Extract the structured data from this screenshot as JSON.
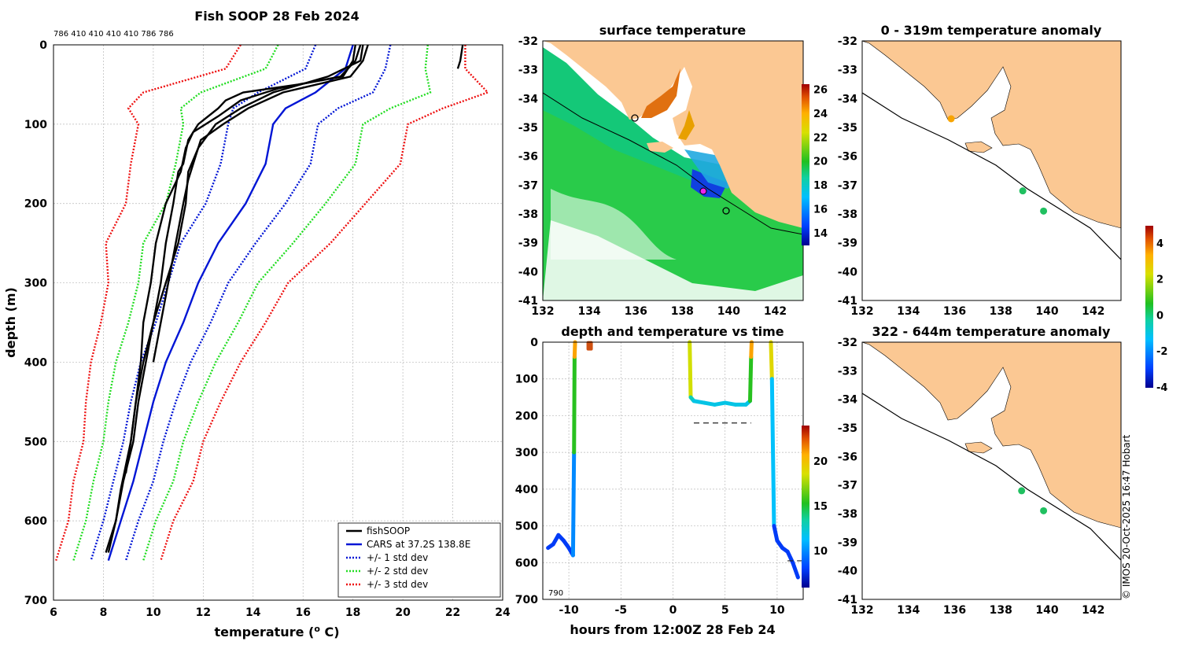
{
  "chart_data": [
    {
      "id": "profile",
      "type": "line",
      "title": "Fish SOOP 28 Feb 2024",
      "xlabel": "temperature (",
      "xlabel_sup": "o",
      "xlabel_tail": " C)",
      "ylabel": "depth (m)",
      "xlim": [
        6,
        24
      ],
      "ylim": [
        0,
        700
      ],
      "xticks": [
        "6",
        "8",
        "10",
        "12",
        "14",
        "16",
        "18",
        "20",
        "22",
        "24"
      ],
      "yticks": [
        "0",
        "100",
        "200",
        "300",
        "400",
        "500",
        "600",
        "700"
      ],
      "header_text": "786 410 410 410 410 786 786",
      "legend": [
        "fishSOOP",
        "CARS at 37.2S 138.8E",
        "+/- 1 std dev",
        "+/- 2 std dev",
        "+/- 3 std dev"
      ],
      "depths": [
        0,
        30,
        60,
        80,
        100,
        150,
        200,
        250,
        300,
        350,
        400,
        450,
        500,
        550,
        600,
        650
      ],
      "cars_mean": [
        18.0,
        17.7,
        16.5,
        15.3,
        14.8,
        14.5,
        13.7,
        12.6,
        11.8,
        11.2,
        10.5,
        10.0,
        9.6,
        9.2,
        8.7,
        8.2
      ],
      "std1_offsets": [
        1.5,
        1.6,
        2.3,
        2.1,
        1.8,
        1.8,
        1.6,
        1.5,
        1.2,
        1.1,
        1.0,
        0.9,
        0.8,
        0.8,
        0.7,
        0.7
      ],
      "series": [
        {
          "name": "fishSOOP cast 1",
          "depths": [
            0,
            20,
            40,
            50,
            60,
            70,
            80,
            100,
            120,
            150,
            160,
            200,
            250,
            300,
            350,
            400,
            450,
            500,
            550,
            600,
            640
          ],
          "values": [
            18.1,
            18.0,
            17.6,
            15.8,
            13.6,
            12.9,
            12.6,
            11.8,
            11.4,
            11.2,
            11.0,
            10.8,
            10.5,
            10.3,
            10.0,
            9.7,
            9.4,
            9.2,
            8.8,
            8.5,
            8.1
          ]
        },
        {
          "name": "fishSOOP cast 2",
          "depths": [
            0,
            20,
            40,
            55,
            70,
            90,
            110,
            130,
            160,
            200,
            250,
            300,
            350,
            400,
            450,
            500,
            540
          ],
          "values": [
            18.3,
            18.1,
            17.5,
            15.0,
            13.5,
            12.6,
            11.6,
            11.3,
            11.1,
            10.5,
            10.1,
            9.9,
            9.6,
            9.5,
            9.3,
            9.1,
            8.9
          ]
        },
        {
          "name": "fishSOOP cast 3",
          "depths": [
            0,
            20,
            40,
            60,
            80,
            100,
            120,
            140,
            170,
            200,
            250,
            300,
            350,
            400
          ],
          "values": [
            18.6,
            18.4,
            17.9,
            15.2,
            13.8,
            12.8,
            11.9,
            11.7,
            11.4,
            11.2,
            10.9,
            10.6,
            10.3,
            10.0
          ]
        },
        {
          "name": "fishSOOP cast 4",
          "depths": [
            0,
            20,
            40,
            60,
            80,
            100,
            130,
            160,
            200,
            250,
            300,
            350,
            400,
            450,
            500,
            560,
            600,
            640
          ],
          "values": [
            18.4,
            18.3,
            17.0,
            14.8,
            13.5,
            12.5,
            11.8,
            11.4,
            11.3,
            11.0,
            10.5,
            10.0,
            9.6,
            9.3,
            9.1,
            8.7,
            8.5,
            8.2
          ]
        },
        {
          "name": "fishSOOP cast 5",
          "depths": [
            0,
            20,
            30
          ],
          "values": [
            22.4,
            22.3,
            22.2
          ]
        }
      ]
    },
    {
      "id": "sst",
      "type": "heatmap",
      "title": "surface temperature",
      "xlim": [
        132,
        143.2
      ],
      "ylim": [
        -41,
        -32
      ],
      "xticks": [
        "132",
        "134",
        "136",
        "138",
        "140",
        "142"
      ],
      "yticks": [
        "-32",
        "-33",
        "-34",
        "-35",
        "-36",
        "-37",
        "-38",
        "-39",
        "-40",
        "-41"
      ],
      "colorbar": {
        "range": [
          13,
          26.5
        ],
        "ticks": [
          "14",
          "16",
          "18",
          "20",
          "22",
          "24",
          "26"
        ]
      }
    },
    {
      "id": "depth_time",
      "type": "line",
      "title": "depth and temperature vs time",
      "xlabel": "hours from 12:00Z 28 Feb 24",
      "xlim": [
        -12.5,
        12.5
      ],
      "ylim": [
        0,
        700
      ],
      "xticks": [
        "-10",
        "-5",
        "0",
        "5",
        "10"
      ],
      "yticks": [
        "0",
        "100",
        "200",
        "300",
        "400",
        "500",
        "600",
        "700"
      ],
      "annotation": "790",
      "colorbar": {
        "range": [
          6,
          24
        ],
        "ticks": [
          "10",
          "15",
          "20"
        ]
      },
      "segments": [
        {
          "hours": [
            -12.0,
            -11.5,
            -11.0,
            -10.5,
            -10.0,
            -9.6,
            -9.5,
            -9.45,
            -9.4
          ],
          "depths": [
            560,
            550,
            525,
            540,
            560,
            580,
            300,
            40,
            0
          ],
          "temps": [
            8,
            8,
            8,
            8,
            8,
            8,
            12,
            19,
            23
          ]
        },
        {
          "hours": [
            1.6,
            1.7,
            2.0,
            3.0,
            4.0,
            5.0,
            6.0,
            7.0,
            7.4,
            7.5,
            7.55
          ],
          "depths": [
            0,
            150,
            160,
            165,
            170,
            165,
            170,
            170,
            160,
            40,
            0
          ],
          "temps": [
            23,
            14,
            12,
            12,
            12,
            12,
            12,
            12,
            12,
            19,
            23
          ]
        },
        {
          "hours": [
            9.4,
            9.5,
            9.7,
            10.0,
            10.5,
            11.0,
            11.5,
            12.0
          ],
          "depths": [
            0,
            100,
            500,
            540,
            560,
            570,
            600,
            640
          ],
          "temps": [
            23,
            15,
            8,
            8,
            8,
            8,
            8,
            8
          ]
        }
      ],
      "marker": {
        "hours": -8.0,
        "depth": 10
      },
      "dashed_levels": [
        {
          "hours_from": 2.0,
          "hours_to": 7.5,
          "depth": 220
        },
        {
          "hours_from": 11.0,
          "hours_to": 12.5,
          "depth": 595
        }
      ]
    },
    {
      "id": "anom_upper",
      "type": "scatter",
      "title": "0 - 319m temperature anomaly",
      "xlim": [
        132,
        143.2
      ],
      "ylim": [
        -41,
        -32
      ],
      "xticks": [
        "132",
        "134",
        "136",
        "138",
        "140",
        "142"
      ],
      "yticks": [
        "-32",
        "-33",
        "-34",
        "-35",
        "-36",
        "-37",
        "-38",
        "-39",
        "-40",
        "-41"
      ],
      "points": [
        {
          "lon": 135.85,
          "lat": -34.7,
          "anomaly": 2.5
        },
        {
          "lon": 138.95,
          "lat": -37.2,
          "anomaly": 0.2
        },
        {
          "lon": 139.85,
          "lat": -37.9,
          "anomaly": 0.2
        }
      ],
      "colorbar": {
        "range": [
          -4,
          5
        ],
        "ticks": [
          "4",
          "2",
          "0",
          "-2",
          "-4"
        ]
      }
    },
    {
      "id": "anom_lower",
      "type": "scatter",
      "title": "322 - 644m temperature anomaly",
      "xlim": [
        132,
        143.2
      ],
      "ylim": [
        -41,
        -32
      ],
      "xticks": [
        "132",
        "134",
        "136",
        "138",
        "140",
        "142"
      ],
      "yticks": [
        "-32",
        "-33",
        "-34",
        "-35",
        "-36",
        "-37",
        "-38",
        "-39",
        "-40",
        "-41"
      ],
      "points": [
        {
          "lon": 138.9,
          "lat": -37.2,
          "anomaly": 0.2
        },
        {
          "lon": 139.85,
          "lat": -37.9,
          "anomaly": 0.2
        }
      ]
    }
  ],
  "credit": "© IMOS 20-Oct-2025 16:47 Hobart"
}
